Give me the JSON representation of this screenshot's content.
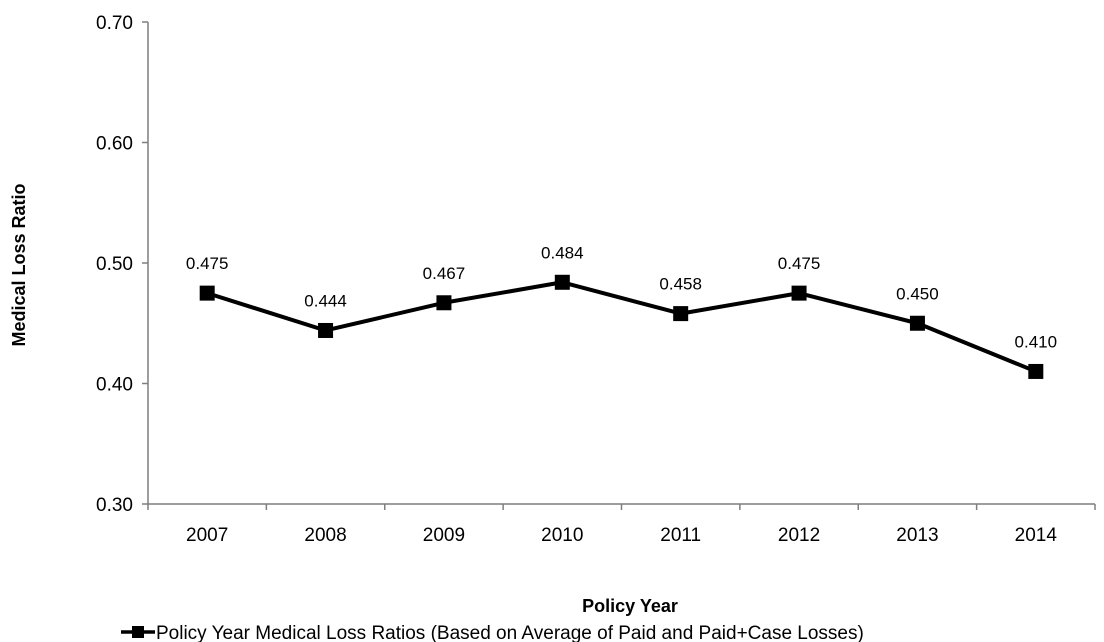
{
  "chart_data": {
    "type": "line",
    "title": "",
    "xlabel": "Policy Year",
    "ylabel": "Medical Loss Ratio",
    "categories": [
      "2007",
      "2008",
      "2009",
      "2010",
      "2011",
      "2012",
      "2013",
      "2014"
    ],
    "series": [
      {
        "name": "Policy Year Medical Loss Ratios (Based on Average of Paid and Paid+Case Losses)",
        "values": [
          0.475,
          0.444,
          0.467,
          0.484,
          0.458,
          0.475,
          0.45,
          0.41
        ],
        "data_labels": [
          "0.475",
          "0.444",
          "0.467",
          "0.484",
          "0.458",
          "0.475",
          "0.450",
          "0.410"
        ],
        "color": "#000000",
        "marker": "square"
      }
    ],
    "ylim": [
      0.3,
      0.7
    ],
    "yticks": [
      0.3,
      0.4,
      0.5,
      0.6,
      0.7
    ],
    "ytick_labels": [
      "0.30",
      "0.40",
      "0.50",
      "0.60",
      "0.70"
    ],
    "grid": false,
    "legend_position": "bottom"
  }
}
